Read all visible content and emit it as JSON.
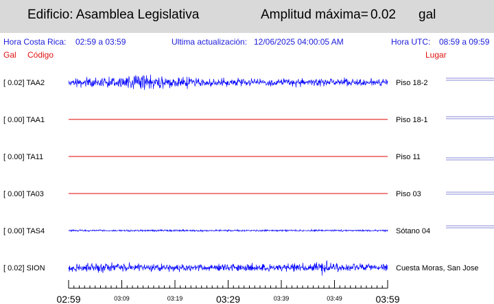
{
  "header": {
    "title": "Edificio: Asamblea Legislativa",
    "amplitude_label": "Amplitud máxima=",
    "amplitude_value": "0.02",
    "amplitude_unit": "gal"
  },
  "info": {
    "local_time_label": "Hora Costa Rica:",
    "local_time_range": "02:59 a 03:59",
    "update_label": "Ultima actualización:",
    "update_value": "12/06/2025 04:00:05 AM",
    "utc_label": "Hora UTC:",
    "utc_range": "08:59 a 09:59"
  },
  "columns": {
    "gal": "Gal",
    "code": "Código",
    "place": "Lugar"
  },
  "colors": {
    "waveform": "#0000ff",
    "flat_trace": "#e00000",
    "info_text": "#1a1adb",
    "column_text": "#e01010",
    "header_bg": "#d9d9d9",
    "side_marker": "#8a8ad8"
  },
  "channels": [
    {
      "gal": "0.02",
      "label": "[  0.02] TAA2",
      "place": "Piso 18-2",
      "kind": "wave",
      "amplitude": 0.02
    },
    {
      "gal": "0.00",
      "label": "[  0.00] TAA1",
      "place": "Piso 18-1",
      "kind": "flat",
      "amplitude": 0.0
    },
    {
      "gal": "0.00",
      "label": "[  0.00] TA11",
      "place": "Piso 11",
      "kind": "flat",
      "amplitude": 0.0
    },
    {
      "gal": "0.00",
      "label": "[  0.00] TA03",
      "place": "Piso 03",
      "kind": "flat",
      "amplitude": 0.0
    },
    {
      "gal": "0.00",
      "label": "[  0.00] TAS4",
      "place": "Sótano 04",
      "kind": "thin",
      "amplitude": 0.0
    },
    {
      "gal": "0.02",
      "label": "[  0.02] SION",
      "place": "Cuesta Moras, San Jose",
      "kind": "wave",
      "amplitude": 0.02
    }
  ],
  "time_axis": {
    "labels": [
      {
        "text": "02:59",
        "major": true
      },
      {
        "text": "03:09",
        "major": false
      },
      {
        "text": "03:19",
        "major": false
      },
      {
        "text": "03:29",
        "major": true
      },
      {
        "text": "03:39",
        "major": false
      },
      {
        "text": "03:49",
        "major": false
      },
      {
        "text": "03:59",
        "major": true
      }
    ]
  }
}
